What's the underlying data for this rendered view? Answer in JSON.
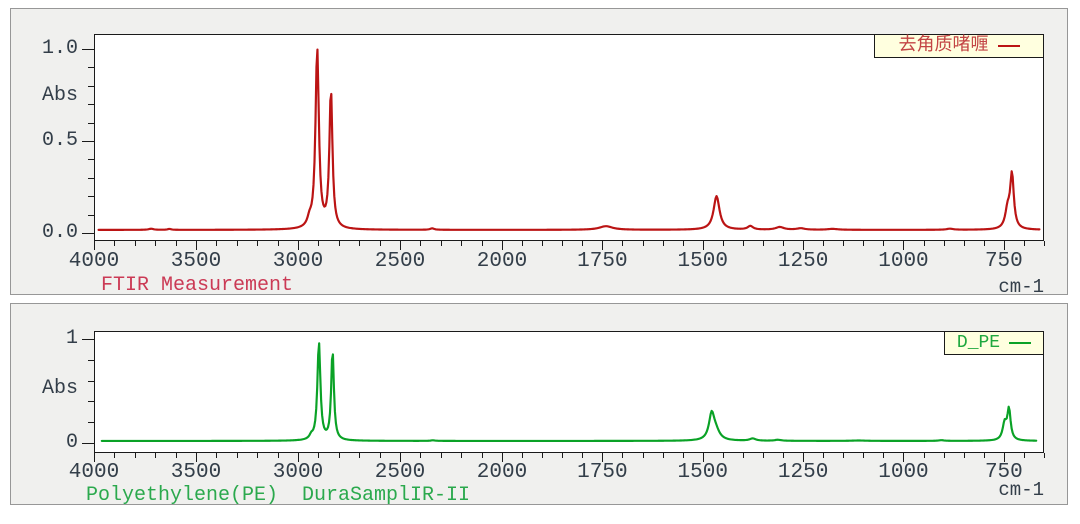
{
  "app": {
    "description_visible_text_only": true,
    "x_unit": "cm-1"
  },
  "chart_data": [
    {
      "type": "line",
      "series_name": "去角质啫喱",
      "caption": "FTIR Measurement",
      "ylabel": "Abs",
      "x_unit": "cm-1",
      "color": "#bb1414",
      "legend_color": "#c34545",
      "caption_color": "#cb3a55",
      "legend_position": "top-right",
      "x_axis": {
        "range": [
          4000,
          650
        ],
        "ticks": [
          4000,
          3500,
          3000,
          2500,
          2000,
          1750,
          1500,
          1250,
          1000,
          750
        ],
        "scale_break_at": 2000,
        "note": "wavenumber axis, region below 2000 cm-1 expanded 2x"
      },
      "y_axis": {
        "range": [
          0,
          1.05
        ],
        "ticks": [
          {
            "v": 1.0,
            "label": "1.0"
          },
          {
            "v": 0.5,
            "label": "0.5"
          },
          {
            "v": 0.0,
            "label": "0.0"
          }
        ]
      },
      "baseline_abs": 0.012,
      "peaks_format": "[center_cm-1, height_abs, hwhm_cm-1] Lorentzian",
      "peaks": [
        [
          3740,
          0.006,
          14
        ],
        [
          3650,
          0.005,
          10
        ],
        [
          2956,
          0.04,
          12
        ],
        [
          2918,
          0.99,
          10
        ],
        [
          2850,
          0.76,
          9
        ],
        [
          2349,
          0.008,
          12
        ],
        [
          1740,
          0.02,
          20
        ],
        [
          1462,
          0.185,
          9
        ],
        [
          1377,
          0.02,
          8
        ],
        [
          1303,
          0.015,
          12
        ],
        [
          1250,
          0.008,
          12
        ],
        [
          1170,
          0.005,
          15
        ],
        [
          875,
          0.006,
          10
        ],
        [
          730,
          0.1,
          7
        ],
        [
          719,
          0.295,
          5.5
        ]
      ]
    },
    {
      "type": "line",
      "series_name": "D_PE",
      "caption": "Polyethylene(PE)  DuraSamplIR-II",
      "ylabel": "Abs",
      "x_unit": "cm-1",
      "color": "#0aa226",
      "legend_color": "#1fa83f",
      "caption_color": "#2ba94d",
      "legend_position": "top-right",
      "x_axis": {
        "range": [
          4000,
          650
        ],
        "ticks": [
          4000,
          3500,
          3000,
          2500,
          2000,
          1750,
          1500,
          1250,
          1000,
          750
        ],
        "scale_break_at": 2000,
        "note": "wavenumber axis, region below 2000 cm-1 expanded 2x"
      },
      "y_axis": {
        "range": [
          0,
          1.05
        ],
        "ticks": [
          {
            "v": 1,
            "label": "1"
          },
          {
            "v": 0,
            "label": "0"
          }
        ]
      },
      "baseline_abs": 0.012,
      "peaks_format": "[center_cm-1, height_abs, hwhm_cm-1] Lorentzian",
      "peaks": [
        [
          2956,
          0.035,
          10
        ],
        [
          2918,
          0.96,
          9
        ],
        [
          2850,
          0.88,
          8
        ],
        [
          2349,
          0.006,
          12
        ],
        [
          1472,
          0.24,
          8
        ],
        [
          1462,
          0.09,
          12
        ],
        [
          1368,
          0.022,
          9
        ],
        [
          1304,
          0.01,
          10
        ],
        [
          1100,
          0.004,
          20
        ],
        [
          890,
          0.007,
          8
        ],
        [
          730,
          0.16,
          6
        ],
        [
          719,
          0.3,
          5
        ]
      ]
    }
  ]
}
